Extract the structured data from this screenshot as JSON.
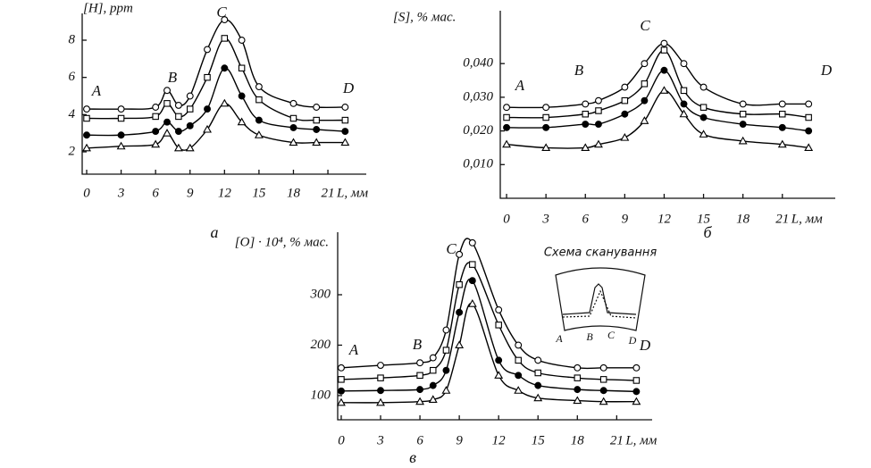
{
  "chart_data": [
    {
      "type": "line",
      "ylabel": "[H], ppm",
      "xlabel": "L, мм",
      "caption": "а",
      "point_labels": [
        "A",
        "B",
        "C",
        "D"
      ],
      "x": [
        0,
        3,
        6,
        7,
        8,
        9,
        10.5,
        12,
        13.5,
        15,
        18,
        20,
        22.5
      ],
      "xlim": [
        -0.39,
        24.34
      ],
      "xticks": [
        0,
        3,
        6,
        9,
        12,
        15,
        18,
        21
      ],
      "ylim": [
        0.8,
        9.44
      ],
      "yticks": [
        2,
        4,
        6,
        8
      ],
      "series": [
        {
          "marker": "circle-open",
          "color": "#000000",
          "values": [
            4.3,
            4.3,
            4.4,
            5.3,
            4.5,
            5.0,
            7.5,
            9.1,
            8.0,
            5.5,
            4.6,
            4.4,
            4.4
          ]
        },
        {
          "marker": "square-open",
          "color": "#000000",
          "values": [
            3.8,
            3.8,
            3.9,
            4.6,
            3.9,
            4.3,
            6.0,
            8.1,
            6.5,
            4.8,
            3.8,
            3.7,
            3.7
          ]
        },
        {
          "marker": "circle-filled",
          "color": "#000000",
          "values": [
            2.9,
            2.9,
            3.1,
            3.6,
            3.1,
            3.4,
            4.3,
            6.5,
            5.0,
            3.7,
            3.3,
            3.2,
            3.1
          ]
        },
        {
          "marker": "triangle-open",
          "color": "#000000",
          "values": [
            2.2,
            2.3,
            2.4,
            3.0,
            2.2,
            2.2,
            3.2,
            4.6,
            3.6,
            2.9,
            2.5,
            2.5,
            2.5
          ]
        }
      ]
    },
    {
      "type": "line",
      "ylabel": "[S], % мас.",
      "xlabel": "L, мм",
      "caption": "б",
      "point_labels": [
        "A",
        "B",
        "C",
        "D"
      ],
      "x": [
        0,
        3,
        6,
        7,
        9,
        10.5,
        12,
        13.5,
        15,
        18,
        21,
        23
      ],
      "xlim": [
        -0.48,
        25.03
      ],
      "xticks": [
        0,
        3,
        6,
        9,
        12,
        15,
        18,
        21
      ],
      "ylim": [
        0,
        0.0557
      ],
      "yticks": [
        {
          "value": 0.01,
          "label": "0,010"
        },
        {
          "value": 0.02,
          "label": "0,020"
        },
        {
          "value": 0.03,
          "label": "0,030"
        },
        {
          "value": 0.04,
          "label": "0,040"
        }
      ],
      "series": [
        {
          "marker": "circle-open",
          "color": "#000000",
          "values": [
            0.027,
            0.027,
            0.028,
            0.029,
            0.033,
            0.04,
            0.046,
            0.04,
            0.033,
            0.028,
            0.028,
            0.028
          ]
        },
        {
          "marker": "square-open",
          "color": "#000000",
          "values": [
            0.024,
            0.024,
            0.025,
            0.026,
            0.029,
            0.034,
            0.044,
            0.032,
            0.027,
            0.025,
            0.025,
            0.024
          ]
        },
        {
          "marker": "circle-filled",
          "color": "#000000",
          "values": [
            0.021,
            0.021,
            0.022,
            0.022,
            0.025,
            0.029,
            0.038,
            0.028,
            0.024,
            0.022,
            0.021,
            0.02
          ]
        },
        {
          "marker": "triangle-open",
          "color": "#000000",
          "values": [
            0.016,
            0.015,
            0.015,
            0.016,
            0.018,
            0.023,
            0.032,
            0.025,
            0.019,
            0.017,
            0.016,
            0.015
          ]
        }
      ]
    },
    {
      "type": "line",
      "ylabel": "[O] · 10⁴, % мас.",
      "xlabel": "L, мм",
      "caption": "в",
      "point_labels": [
        "A",
        "B",
        "C",
        "D"
      ],
      "inset": {
        "title": "Схема сканування",
        "labels": [
          "A",
          "B",
          "C",
          "D"
        ]
      },
      "x": [
        0,
        3,
        6,
        7,
        8,
        9,
        10,
        12,
        13.5,
        15,
        18,
        20,
        22.5
      ],
      "xlim": [
        -0.27,
        23.7
      ],
      "xticks": [
        0,
        3,
        6,
        9,
        12,
        15,
        18,
        21
      ],
      "ylim": [
        52,
        424
      ],
      "yticks": [
        100,
        200,
        300
      ],
      "series": [
        {
          "marker": "circle-open",
          "color": "#000000",
          "values": [
            155,
            160,
            165,
            175,
            230,
            380,
            403,
            270,
            200,
            170,
            155,
            155,
            155
          ]
        },
        {
          "marker": "square-open",
          "color": "#000000",
          "values": [
            132,
            135,
            140,
            150,
            190,
            320,
            360,
            240,
            170,
            145,
            135,
            132,
            130
          ]
        },
        {
          "marker": "circle-filled",
          "color": "#000000",
          "values": [
            109,
            110,
            112,
            120,
            150,
            265,
            328,
            170,
            140,
            120,
            112,
            110,
            108
          ]
        },
        {
          "marker": "triangle-open",
          "color": "#000000",
          "values": [
            86,
            86,
            88,
            92,
            110,
            200,
            282,
            140,
            110,
            95,
            90,
            88,
            88
          ]
        }
      ]
    }
  ]
}
